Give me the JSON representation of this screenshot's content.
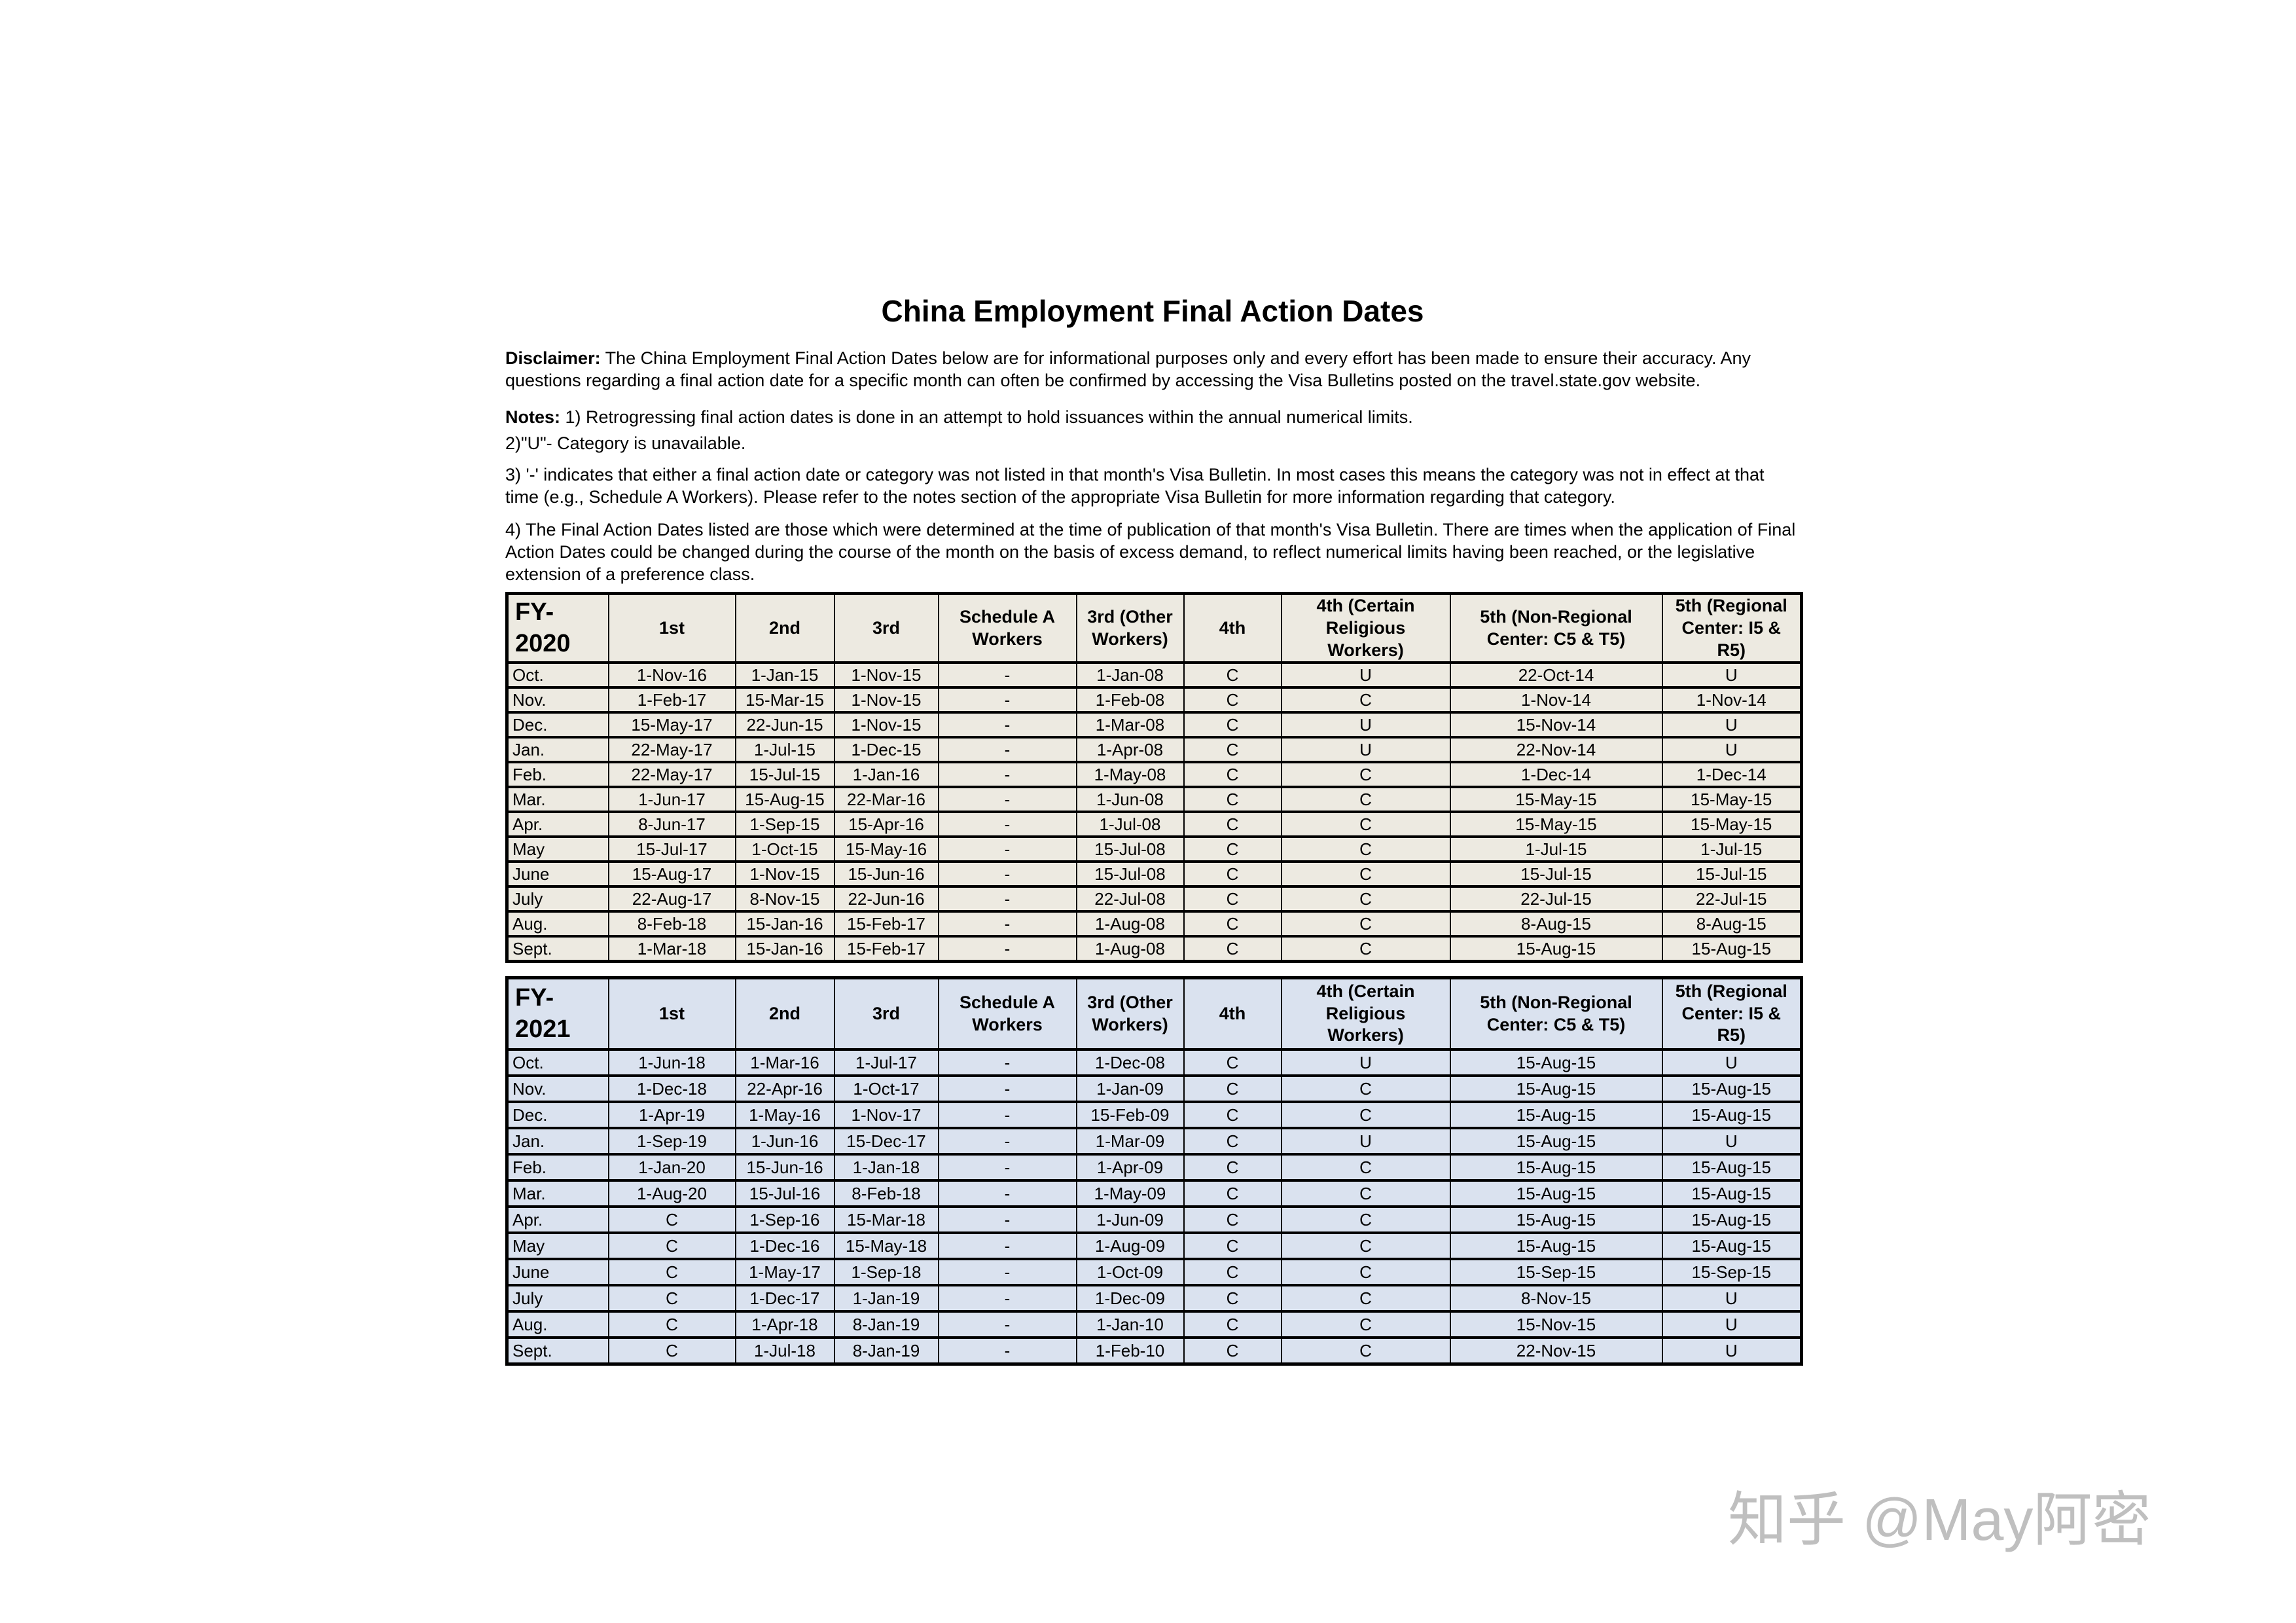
{
  "page": {
    "title": "China Employment Final Action Dates",
    "disclaimer_label": "Disclaimer:",
    "disclaimer_text": " The China Employment Final Action Dates below are for informational purposes only and every effort has been made to ensure their accuracy. Any questions regarding a final action date for a specific month can often be confirmed by accessing the Visa Bulletins posted on the travel.state.gov website.",
    "notes_label": "Notes:",
    "note1": " 1) Retrogressing final action dates is done in an attempt to hold issuances within the annual numerical limits.",
    "note2": "2)\"U\"- Category is unavailable.",
    "note3": "3) '-' indicates that either a final action date or category was not listed in that month's Visa Bulletin. In most cases this means the category was not in effect at that time (e.g., Schedule A Workers). Please refer to the notes section of the appropriate Visa Bulletin for more information regarding that category.",
    "note4": "4) The Final Action Dates listed are those which were determined at the time of publication of that month's Visa Bulletin. There are times when the application of Final Action Dates could be changed during the course of the month on the basis of excess demand, to reflect numerical limits having been reached, or the legislative extension of a preference class."
  },
  "watermark": "知乎 @May阿密",
  "colors": {
    "fy2020_table_bg": "#EDEAE1",
    "fy2021_table_bg": "#DAE2EF",
    "table_border": "#000000",
    "watermark_text": "#BFBFBF",
    "page_bg": "#FFFFFF"
  },
  "tables": [
    {
      "fiscal_year": "FY-2020",
      "columns": [
        "1st",
        "2nd",
        "3rd",
        "Schedule A Workers",
        "3rd (Other Workers)",
        "4th",
        "4th (Certain Religious Workers)",
        "5th (Non-Regional Center: C5 & T5)",
        "5th (Regional Center: I5 & R5)"
      ],
      "rows": [
        {
          "month": "Oct.",
          "cells": [
            "1-Nov-16",
            "1-Jan-15",
            "1-Nov-15",
            "-",
            "1-Jan-08",
            "C",
            "U",
            "22-Oct-14",
            "U"
          ]
        },
        {
          "month": "Nov.",
          "cells": [
            "1-Feb-17",
            "15-Mar-15",
            "1-Nov-15",
            "-",
            "1-Feb-08",
            "C",
            "C",
            "1-Nov-14",
            "1-Nov-14"
          ]
        },
        {
          "month": "Dec.",
          "cells": [
            "15-May-17",
            "22-Jun-15",
            "1-Nov-15",
            "-",
            "1-Mar-08",
            "C",
            "U",
            "15-Nov-14",
            "U"
          ]
        },
        {
          "month": "Jan.",
          "cells": [
            "22-May-17",
            "1-Jul-15",
            "1-Dec-15",
            "-",
            "1-Apr-08",
            "C",
            "U",
            "22-Nov-14",
            "U"
          ]
        },
        {
          "month": "Feb.",
          "cells": [
            "22-May-17",
            "15-Jul-15",
            "1-Jan-16",
            "-",
            "1-May-08",
            "C",
            "C",
            "1-Dec-14",
            "1-Dec-14"
          ]
        },
        {
          "month": "Mar.",
          "cells": [
            "1-Jun-17",
            "15-Aug-15",
            "22-Mar-16",
            "-",
            "1-Jun-08",
            "C",
            "C",
            "15-May-15",
            "15-May-15"
          ]
        },
        {
          "month": "Apr.",
          "cells": [
            "8-Jun-17",
            "1-Sep-15",
            "15-Apr-16",
            "-",
            "1-Jul-08",
            "C",
            "C",
            "15-May-15",
            "15-May-15"
          ]
        },
        {
          "month": "May",
          "cells": [
            "15-Jul-17",
            "1-Oct-15",
            "15-May-16",
            "-",
            "15-Jul-08",
            "C",
            "C",
            "1-Jul-15",
            "1-Jul-15"
          ]
        },
        {
          "month": "June",
          "cells": [
            "15-Aug-17",
            "1-Nov-15",
            "15-Jun-16",
            "-",
            "15-Jul-08",
            "C",
            "C",
            "15-Jul-15",
            "15-Jul-15"
          ]
        },
        {
          "month": "July",
          "cells": [
            "22-Aug-17",
            "8-Nov-15",
            "22-Jun-16",
            "-",
            "22-Jul-08",
            "C",
            "C",
            "22-Jul-15",
            "22-Jul-15"
          ]
        },
        {
          "month": "Aug.",
          "cells": [
            "8-Feb-18",
            "15-Jan-16",
            "15-Feb-17",
            "-",
            "1-Aug-08",
            "C",
            "C",
            "8-Aug-15",
            "8-Aug-15"
          ]
        },
        {
          "month": "Sept.",
          "cells": [
            "1-Mar-18",
            "15-Jan-16",
            "15-Feb-17",
            "-",
            "1-Aug-08",
            "C",
            "C",
            "15-Aug-15",
            "15-Aug-15"
          ]
        }
      ]
    },
    {
      "fiscal_year": "FY-2021",
      "columns": [
        "1st",
        "2nd",
        "3rd",
        "Schedule A Workers",
        "3rd (Other Workers)",
        "4th",
        "4th (Certain Religious Workers)",
        "5th (Non-Regional Center: C5 & T5)",
        "5th (Regional Center: I5 & R5)"
      ],
      "rows": [
        {
          "month": "Oct.",
          "cells": [
            "1-Jun-18",
            "1-Mar-16",
            "1-Jul-17",
            "-",
            "1-Dec-08",
            "C",
            "U",
            "15-Aug-15",
            "U"
          ]
        },
        {
          "month": "Nov.",
          "cells": [
            "1-Dec-18",
            "22-Apr-16",
            "1-Oct-17",
            "-",
            "1-Jan-09",
            "C",
            "C",
            "15-Aug-15",
            "15-Aug-15"
          ]
        },
        {
          "month": "Dec.",
          "cells": [
            "1-Apr-19",
            "1-May-16",
            "1-Nov-17",
            "-",
            "15-Feb-09",
            "C",
            "C",
            "15-Aug-15",
            "15-Aug-15"
          ]
        },
        {
          "month": "Jan.",
          "cells": [
            "1-Sep-19",
            "1-Jun-16",
            "15-Dec-17",
            "-",
            "1-Mar-09",
            "C",
            "U",
            "15-Aug-15",
            "U"
          ]
        },
        {
          "month": "Feb.",
          "cells": [
            "1-Jan-20",
            "15-Jun-16",
            "1-Jan-18",
            "-",
            "1-Apr-09",
            "C",
            "C",
            "15-Aug-15",
            "15-Aug-15"
          ]
        },
        {
          "month": "Mar.",
          "cells": [
            "1-Aug-20",
            "15-Jul-16",
            "8-Feb-18",
            "-",
            "1-May-09",
            "C",
            "C",
            "15-Aug-15",
            "15-Aug-15"
          ]
        },
        {
          "month": "Apr.",
          "cells": [
            "C",
            "1-Sep-16",
            "15-Mar-18",
            "-",
            "1-Jun-09",
            "C",
            "C",
            "15-Aug-15",
            "15-Aug-15"
          ]
        },
        {
          "month": "May",
          "cells": [
            "C",
            "1-Dec-16",
            "15-May-18",
            "-",
            "1-Aug-09",
            "C",
            "C",
            "15-Aug-15",
            "15-Aug-15"
          ]
        },
        {
          "month": "June",
          "cells": [
            "C",
            "1-May-17",
            "1-Sep-18",
            "-",
            "1-Oct-09",
            "C",
            "C",
            "15-Sep-15",
            "15-Sep-15"
          ]
        },
        {
          "month": "July",
          "cells": [
            "C",
            "1-Dec-17",
            "1-Jan-19",
            "-",
            "1-Dec-09",
            "C",
            "C",
            "8-Nov-15",
            "U"
          ]
        },
        {
          "month": "Aug.",
          "cells": [
            "C",
            "1-Apr-18",
            "8-Jan-19",
            "-",
            "1-Jan-10",
            "C",
            "C",
            "15-Nov-15",
            "U"
          ]
        },
        {
          "month": "Sept.",
          "cells": [
            "C",
            "1-Jul-18",
            "8-Jan-19",
            "-",
            "1-Feb-10",
            "C",
            "C",
            "22-Nov-15",
            "U"
          ]
        }
      ]
    }
  ]
}
